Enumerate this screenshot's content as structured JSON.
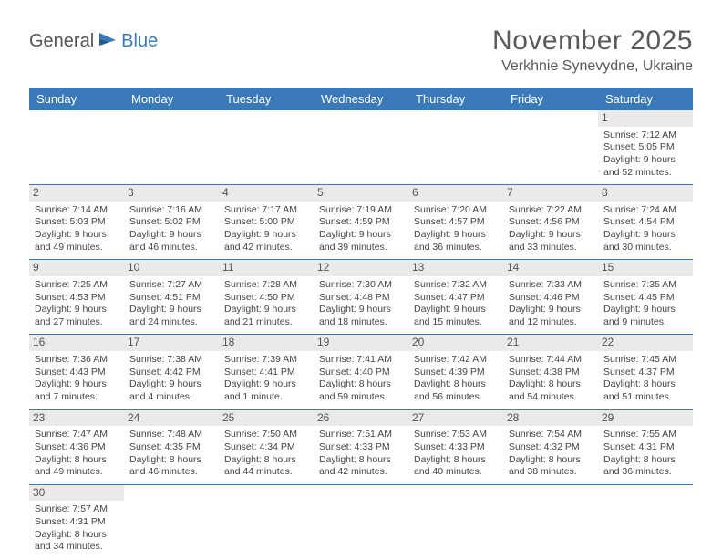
{
  "logo": {
    "general": "General",
    "blue": "Blue"
  },
  "title": "November 2025",
  "location": "Verkhnie Synevydne, Ukraine",
  "day_names": [
    "Sunday",
    "Monday",
    "Tuesday",
    "Wednesday",
    "Thursday",
    "Friday",
    "Saturday"
  ],
  "colors": {
    "header_bg": "#3a7ab8",
    "header_text": "#ffffff",
    "daynum_bg": "#eaeaea",
    "border": "#3a7ab8",
    "text": "#444444"
  },
  "weeks": [
    [
      {
        "n": "",
        "lines": []
      },
      {
        "n": "",
        "lines": []
      },
      {
        "n": "",
        "lines": []
      },
      {
        "n": "",
        "lines": []
      },
      {
        "n": "",
        "lines": []
      },
      {
        "n": "",
        "lines": []
      },
      {
        "n": "1",
        "lines": [
          "Sunrise: 7:12 AM",
          "Sunset: 5:05 PM",
          "Daylight: 9 hours and 52 minutes."
        ]
      }
    ],
    [
      {
        "n": "2",
        "lines": [
          "Sunrise: 7:14 AM",
          "Sunset: 5:03 PM",
          "Daylight: 9 hours and 49 minutes."
        ]
      },
      {
        "n": "3",
        "lines": [
          "Sunrise: 7:16 AM",
          "Sunset: 5:02 PM",
          "Daylight: 9 hours and 46 minutes."
        ]
      },
      {
        "n": "4",
        "lines": [
          "Sunrise: 7:17 AM",
          "Sunset: 5:00 PM",
          "Daylight: 9 hours and 42 minutes."
        ]
      },
      {
        "n": "5",
        "lines": [
          "Sunrise: 7:19 AM",
          "Sunset: 4:59 PM",
          "Daylight: 9 hours and 39 minutes."
        ]
      },
      {
        "n": "6",
        "lines": [
          "Sunrise: 7:20 AM",
          "Sunset: 4:57 PM",
          "Daylight: 9 hours and 36 minutes."
        ]
      },
      {
        "n": "7",
        "lines": [
          "Sunrise: 7:22 AM",
          "Sunset: 4:56 PM",
          "Daylight: 9 hours and 33 minutes."
        ]
      },
      {
        "n": "8",
        "lines": [
          "Sunrise: 7:24 AM",
          "Sunset: 4:54 PM",
          "Daylight: 9 hours and 30 minutes."
        ]
      }
    ],
    [
      {
        "n": "9",
        "lines": [
          "Sunrise: 7:25 AM",
          "Sunset: 4:53 PM",
          "Daylight: 9 hours and 27 minutes."
        ]
      },
      {
        "n": "10",
        "lines": [
          "Sunrise: 7:27 AM",
          "Sunset: 4:51 PM",
          "Daylight: 9 hours and 24 minutes."
        ]
      },
      {
        "n": "11",
        "lines": [
          "Sunrise: 7:28 AM",
          "Sunset: 4:50 PM",
          "Daylight: 9 hours and 21 minutes."
        ]
      },
      {
        "n": "12",
        "lines": [
          "Sunrise: 7:30 AM",
          "Sunset: 4:48 PM",
          "Daylight: 9 hours and 18 minutes."
        ]
      },
      {
        "n": "13",
        "lines": [
          "Sunrise: 7:32 AM",
          "Sunset: 4:47 PM",
          "Daylight: 9 hours and 15 minutes."
        ]
      },
      {
        "n": "14",
        "lines": [
          "Sunrise: 7:33 AM",
          "Sunset: 4:46 PM",
          "Daylight: 9 hours and 12 minutes."
        ]
      },
      {
        "n": "15",
        "lines": [
          "Sunrise: 7:35 AM",
          "Sunset: 4:45 PM",
          "Daylight: 9 hours and 9 minutes."
        ]
      }
    ],
    [
      {
        "n": "16",
        "lines": [
          "Sunrise: 7:36 AM",
          "Sunset: 4:43 PM",
          "Daylight: 9 hours and 7 minutes."
        ]
      },
      {
        "n": "17",
        "lines": [
          "Sunrise: 7:38 AM",
          "Sunset: 4:42 PM",
          "Daylight: 9 hours and 4 minutes."
        ]
      },
      {
        "n": "18",
        "lines": [
          "Sunrise: 7:39 AM",
          "Sunset: 4:41 PM",
          "Daylight: 9 hours and 1 minute."
        ]
      },
      {
        "n": "19",
        "lines": [
          "Sunrise: 7:41 AM",
          "Sunset: 4:40 PM",
          "Daylight: 8 hours and 59 minutes."
        ]
      },
      {
        "n": "20",
        "lines": [
          "Sunrise: 7:42 AM",
          "Sunset: 4:39 PM",
          "Daylight: 8 hours and 56 minutes."
        ]
      },
      {
        "n": "21",
        "lines": [
          "Sunrise: 7:44 AM",
          "Sunset: 4:38 PM",
          "Daylight: 8 hours and 54 minutes."
        ]
      },
      {
        "n": "22",
        "lines": [
          "Sunrise: 7:45 AM",
          "Sunset: 4:37 PM",
          "Daylight: 8 hours and 51 minutes."
        ]
      }
    ],
    [
      {
        "n": "23",
        "lines": [
          "Sunrise: 7:47 AM",
          "Sunset: 4:36 PM",
          "Daylight: 8 hours and 49 minutes."
        ]
      },
      {
        "n": "24",
        "lines": [
          "Sunrise: 7:48 AM",
          "Sunset: 4:35 PM",
          "Daylight: 8 hours and 46 minutes."
        ]
      },
      {
        "n": "25",
        "lines": [
          "Sunrise: 7:50 AM",
          "Sunset: 4:34 PM",
          "Daylight: 8 hours and 44 minutes."
        ]
      },
      {
        "n": "26",
        "lines": [
          "Sunrise: 7:51 AM",
          "Sunset: 4:33 PM",
          "Daylight: 8 hours and 42 minutes."
        ]
      },
      {
        "n": "27",
        "lines": [
          "Sunrise: 7:53 AM",
          "Sunset: 4:33 PM",
          "Daylight: 8 hours and 40 minutes."
        ]
      },
      {
        "n": "28",
        "lines": [
          "Sunrise: 7:54 AM",
          "Sunset: 4:32 PM",
          "Daylight: 8 hours and 38 minutes."
        ]
      },
      {
        "n": "29",
        "lines": [
          "Sunrise: 7:55 AM",
          "Sunset: 4:31 PM",
          "Daylight: 8 hours and 36 minutes."
        ]
      }
    ],
    [
      {
        "n": "30",
        "lines": [
          "Sunrise: 7:57 AM",
          "Sunset: 4:31 PM",
          "Daylight: 8 hours and 34 minutes."
        ]
      },
      {
        "n": "",
        "lines": []
      },
      {
        "n": "",
        "lines": []
      },
      {
        "n": "",
        "lines": []
      },
      {
        "n": "",
        "lines": []
      },
      {
        "n": "",
        "lines": []
      },
      {
        "n": "",
        "lines": []
      }
    ]
  ]
}
